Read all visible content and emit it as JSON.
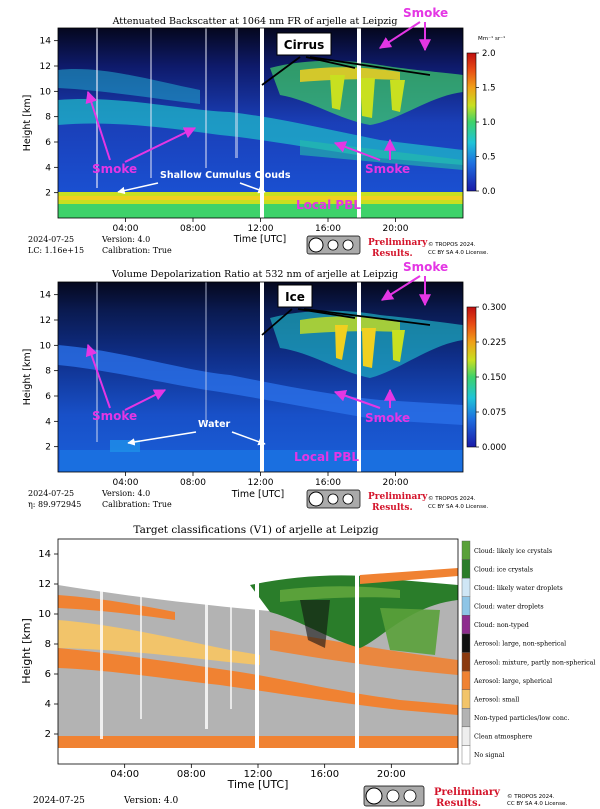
{
  "chart_data": [
    {
      "type": "heatmap",
      "title": "Attenuated Backscatter at 1064 nm FR of arjelle at Leipzig",
      "xlabel": "Time [UTC]",
      "ylabel": "Height [km]",
      "xticks": [
        "04:00",
        "08:00",
        "12:00",
        "16:00",
        "20:00"
      ],
      "yticks": [
        "2",
        "4",
        "6",
        "8",
        "10",
        "12",
        "14"
      ],
      "xlim": [
        0,
        24
      ],
      "ylim": [
        0,
        15
      ],
      "colorbar": {
        "unit": "Mm⁻¹ sr⁻¹",
        "range": [
          0.0,
          2.0
        ],
        "ticks": [
          "0.0",
          "0.5",
          "1.0",
          "1.5",
          "2.0"
        ]
      },
      "info": {
        "date": "2024-07-25",
        "lc": "LC: 1.16e+15",
        "version": "Version: 4.0",
        "calibration": "Calibration: True"
      },
      "annotations": [
        "Smoke",
        "Cirrus",
        "Smoke",
        "Smoke",
        "Shallow Cumulus Clouds",
        "Local PBL"
      ]
    },
    {
      "type": "heatmap",
      "title": "Volume Depolarization Ratio at 532 nm of arjelle at Leipzig",
      "xlabel": "Time [UTC]",
      "ylabel": "Height [km]",
      "xticks": [
        "04:00",
        "08:00",
        "12:00",
        "16:00",
        "20:00"
      ],
      "yticks": [
        "2",
        "4",
        "6",
        "8",
        "10",
        "12",
        "14"
      ],
      "xlim": [
        0,
        24
      ],
      "ylim": [
        0,
        15
      ],
      "colorbar": {
        "range": [
          0.0,
          0.3
        ],
        "ticks": [
          "0.000",
          "0.075",
          "0.150",
          "0.225",
          "0.300"
        ]
      },
      "info": {
        "date": "2024-07-25",
        "eta": "η: 89.972945",
        "version": "Version: 4.0",
        "calibration": "Calibration: True"
      },
      "annotations": [
        "Smoke",
        "Ice",
        "Smoke",
        "Smoke",
        "Water",
        "Local PBL"
      ]
    },
    {
      "type": "heatmap",
      "title": "Target classifications (V1) of arjelle at Leipzig",
      "xlabel": "Time [UTC]",
      "ylabel": "Height [km]",
      "xticks": [
        "04:00",
        "08:00",
        "12:00",
        "16:00",
        "20:00"
      ],
      "yticks": [
        "2",
        "4",
        "6",
        "8",
        "10",
        "12",
        "14"
      ],
      "xlim": [
        0,
        24
      ],
      "ylim": [
        0,
        15
      ],
      "info": {
        "date": "2024-07-25",
        "version": "Version: 4.0"
      },
      "legend": [
        {
          "label": "Cloud: likely ice crystals",
          "color": "#5aa13a"
        },
        {
          "label": "Cloud: ice crystals",
          "color": "#2a7d2a"
        },
        {
          "label": "Cloud: likely water droplets",
          "color": "#cfe6f5"
        },
        {
          "label": "Cloud: water droplets",
          "color": "#8ec5e6"
        },
        {
          "label": "Cloud: non-typed",
          "color": "#8e2c8e"
        },
        {
          "label": "Aerosol: large, non-spherical",
          "color": "#111111"
        },
        {
          "label": "Aerosol: mixture, partly non-spherical",
          "color": "#8b3a0f"
        },
        {
          "label": "Aerosol: large, spherical",
          "color": "#f08232"
        },
        {
          "label": "Aerosol: small",
          "color": "#f2c46a"
        },
        {
          "label": "Non-typed particles/low conc.",
          "color": "#b3b3b3"
        },
        {
          "label": "Clean atmosphere",
          "color": "#eeeeee"
        },
        {
          "label": "No signal",
          "color": "#ffffff"
        }
      ]
    }
  ],
  "footer": {
    "prelim1": "Preliminary",
    "prelim2": "Results.",
    "license1": "© TROPOS 2024.",
    "license2": "CC BY SA 4.0 License."
  }
}
